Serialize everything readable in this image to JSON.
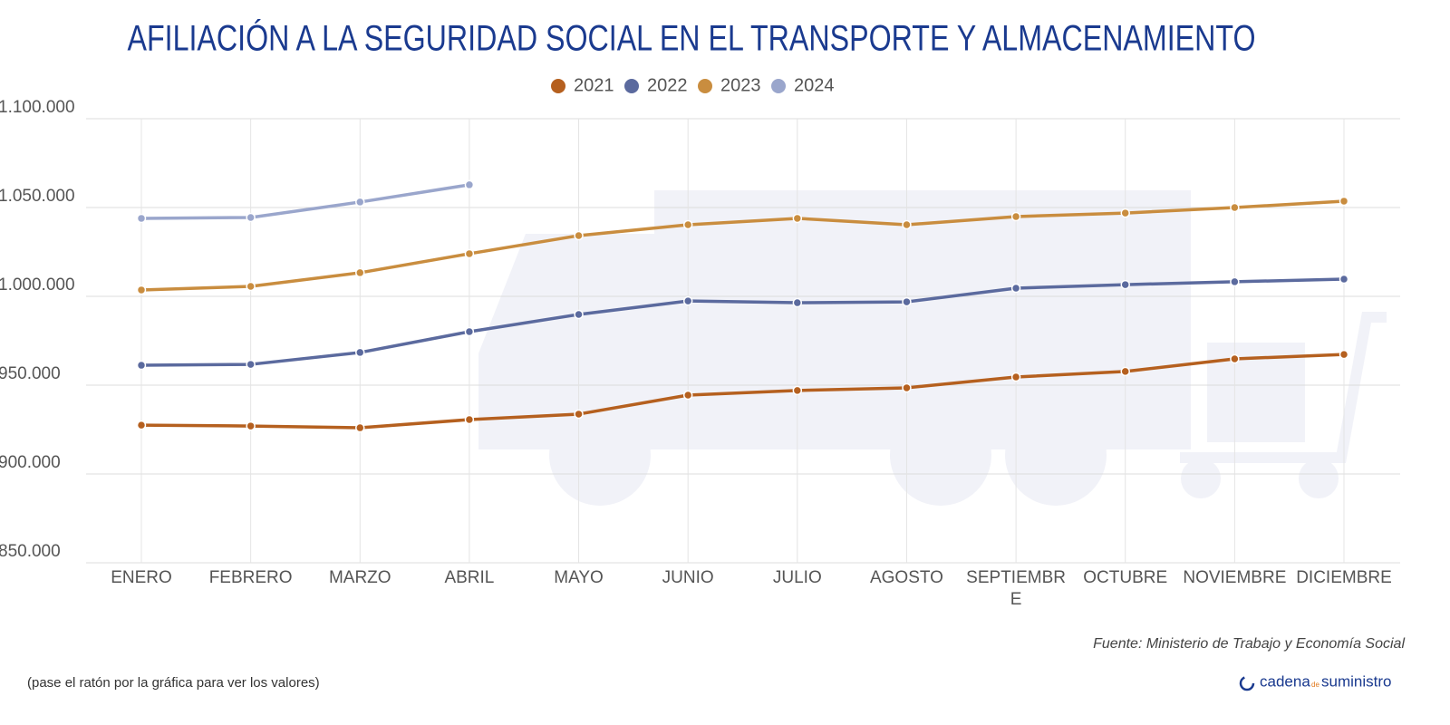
{
  "chart_data": {
    "type": "line",
    "title": "AFILIACIÓN A LA SEGURIDAD SOCIAL EN EL TRANSPORTE Y ALMACENAMIENTO",
    "categories": [
      "ENERO",
      "FEBRERO",
      "MARZO",
      "ABRIL",
      "MAYO",
      "JUNIO",
      "JULIO",
      "AGOSTO",
      "SEPTIEMBRE",
      "OCTUBRE",
      "NOVIEMBRE",
      "DICIEMBRE"
    ],
    "series": [
      {
        "name": "2021",
        "color": "#b5601f",
        "values": [
          927500,
          927000,
          926000,
          930600,
          933700,
          944400,
          947000,
          948500,
          954600,
          957700,
          964800,
          967300
        ]
      },
      {
        "name": "2022",
        "color": "#5b6a9e",
        "values": [
          961200,
          961700,
          968400,
          980100,
          989800,
          997400,
          996400,
          996900,
          1004600,
          1006600,
          1008200,
          1009700
        ]
      },
      {
        "name": "2023",
        "color": "#c98d3f",
        "values": [
          1003600,
          1005600,
          1013300,
          1024000,
          1034200,
          1040300,
          1043900,
          1040300,
          1044900,
          1046900,
          1050000,
          1053600
        ]
      },
      {
        "name": "2024",
        "color": "#9aa6cc",
        "values": [
          1043900,
          1044400,
          1053100,
          1062800,
          null,
          null,
          null,
          null,
          null,
          null,
          null,
          null
        ]
      }
    ],
    "ylim": [
      850000,
      1100000
    ],
    "yticks": [
      {
        "value": 850000,
        "label": "850.000"
      },
      {
        "value": 900000,
        "label": "900.000"
      },
      {
        "value": 950000,
        "label": "950.000"
      },
      {
        "value": 1000000,
        "label": "1.000.000"
      },
      {
        "value": 1050000,
        "label": "1.050.000"
      },
      {
        "value": 1100000,
        "label": "1.100.000"
      }
    ],
    "grid": true,
    "legend": "top",
    "source": "Fuente: Ministerio de Trabajo y Economía Social",
    "note": "(pase el ratón por la gráfica para ver los valores)",
    "logo": {
      "word1": "cadena",
      "word2": "de",
      "word3": "suministro"
    }
  }
}
